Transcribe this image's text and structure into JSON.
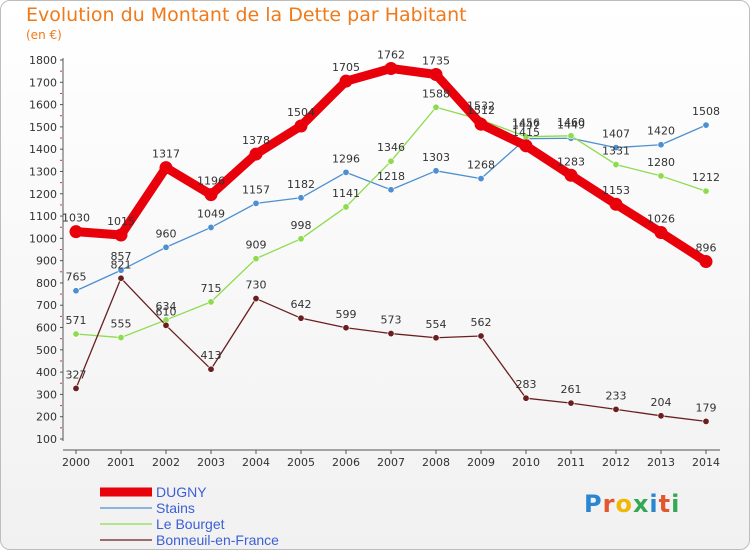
{
  "title": "Evolution du Montant de la Dette par Habitant",
  "subtitle": "(en €)",
  "logo": {
    "text": "Proxiti",
    "colors": [
      "#2a86d1",
      "#e4572e",
      "#f2b705",
      "#35a853",
      "#2a86d1",
      "#e4572e",
      "#35a853"
    ]
  },
  "chart_data": {
    "type": "line",
    "x": [
      2000,
      2001,
      2002,
      2003,
      2004,
      2005,
      2006,
      2007,
      2008,
      2009,
      2010,
      2011,
      2012,
      2013,
      2014
    ],
    "ylim": [
      100,
      1800
    ],
    "yticks": [
      100,
      200,
      300,
      400,
      500,
      600,
      700,
      800,
      900,
      1000,
      1100,
      1200,
      1300,
      1400,
      1500,
      1600,
      1700,
      1800
    ],
    "grid": false,
    "legend_position": "bottom-left",
    "series": [
      {
        "name": "DUGNY",
        "color": "#e8000b",
        "style": "thick",
        "values": [
          1030,
          1015,
          1317,
          1196,
          1378,
          1504,
          1705,
          1762,
          1735,
          1512,
          1415,
          1283,
          1153,
          1026,
          896
        ]
      },
      {
        "name": "Stains",
        "color": "#4d8fd1",
        "style": "thin",
        "values": [
          765,
          857,
          960,
          1049,
          1157,
          1182,
          1296,
          1218,
          1303,
          1268,
          1447,
          1449,
          1407,
          1420,
          1508
        ]
      },
      {
        "name": "Le Bourget",
        "color": "#8ddc4f",
        "style": "thin",
        "values": [
          571,
          555,
          634,
          715,
          909,
          998,
          1141,
          1346,
          1588,
          1532,
          1456,
          1460,
          1331,
          1280,
          1212
        ]
      },
      {
        "name": "Bonneuil-en-France",
        "color": "#6a1f1f",
        "style": "thin",
        "values": [
          327,
          821,
          610,
          413,
          730,
          642,
          599,
          573,
          554,
          562,
          283,
          261,
          233,
          204,
          179
        ]
      }
    ]
  }
}
